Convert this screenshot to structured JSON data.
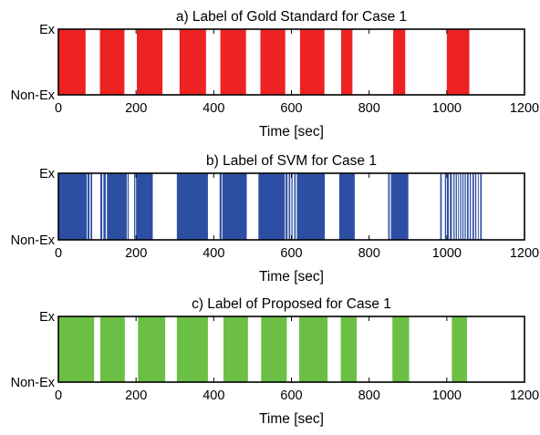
{
  "chart_data": [
    {
      "type": "area",
      "title": "a) Label of Gold Standard for Case 1",
      "xlabel": "Time [sec]",
      "ylabel": "",
      "xlim": [
        0,
        1200
      ],
      "y_categories": [
        "Non-Ex",
        "Ex"
      ],
      "x_ticks": [
        "0",
        "200",
        "400",
        "600",
        "800",
        "1000",
        "1200"
      ],
      "color": "#ee2222",
      "ex_intervals": [
        [
          0,
          70
        ],
        [
          107,
          170
        ],
        [
          202,
          268
        ],
        [
          312,
          380
        ],
        [
          417,
          483
        ],
        [
          520,
          584
        ],
        [
          622,
          685
        ],
        [
          728,
          757
        ],
        [
          862,
          893
        ],
        [
          1000,
          1058
        ]
      ]
    },
    {
      "type": "area",
      "title": "b) Label of SVM for Case 1",
      "xlabel": "Time [sec]",
      "ylabel": "",
      "xlim": [
        0,
        1200
      ],
      "y_categories": [
        "Non-Ex",
        "Ex"
      ],
      "x_ticks": [
        "0",
        "200",
        "400",
        "600",
        "800",
        "1000",
        "1200"
      ],
      "color": "#2d4fa3",
      "ex_intervals": [
        [
          0,
          73
        ],
        [
          75,
          80
        ],
        [
          83,
          87
        ],
        [
          108,
          113
        ],
        [
          116,
          122
        ],
        [
          125,
          176
        ],
        [
          178,
          181
        ],
        [
          195,
          198
        ],
        [
          200,
          243
        ],
        [
          305,
          385
        ],
        [
          415,
          420
        ],
        [
          422,
          485
        ],
        [
          515,
          583
        ],
        [
          585,
          590
        ],
        [
          593,
          597
        ],
        [
          600,
          603
        ],
        [
          607,
          611
        ],
        [
          614,
          686
        ],
        [
          723,
          763
        ],
        [
          849,
          853
        ],
        [
          856,
          901
        ],
        [
          983,
          987
        ],
        [
          995,
          998
        ],
        [
          1000,
          1005
        ],
        [
          1008,
          1013
        ],
        [
          1017,
          1020
        ],
        [
          1023,
          1026
        ],
        [
          1029,
          1031
        ],
        [
          1034,
          1037
        ],
        [
          1040,
          1043
        ],
        [
          1046,
          1049
        ],
        [
          1052,
          1056
        ],
        [
          1059,
          1062
        ],
        [
          1066,
          1070
        ],
        [
          1073,
          1076
        ],
        [
          1080,
          1082
        ],
        [
          1086,
          1090
        ]
      ]
    },
    {
      "type": "area",
      "title": "c) Label of Proposed for Case 1",
      "xlabel": "Time [sec]",
      "ylabel": "",
      "xlim": [
        0,
        1200
      ],
      "y_categories": [
        "Non-Ex",
        "Ex"
      ],
      "x_ticks": [
        "0",
        "200",
        "400",
        "600",
        "800",
        "1000",
        "1200"
      ],
      "color": "#6cbf45",
      "ex_intervals": [
        [
          0,
          92
        ],
        [
          108,
          171
        ],
        [
          205,
          275
        ],
        [
          305,
          385
        ],
        [
          425,
          488
        ],
        [
          522,
          588
        ],
        [
          620,
          693
        ],
        [
          727,
          768
        ],
        [
          860,
          903
        ],
        [
          1013,
          1052
        ]
      ]
    }
  ]
}
